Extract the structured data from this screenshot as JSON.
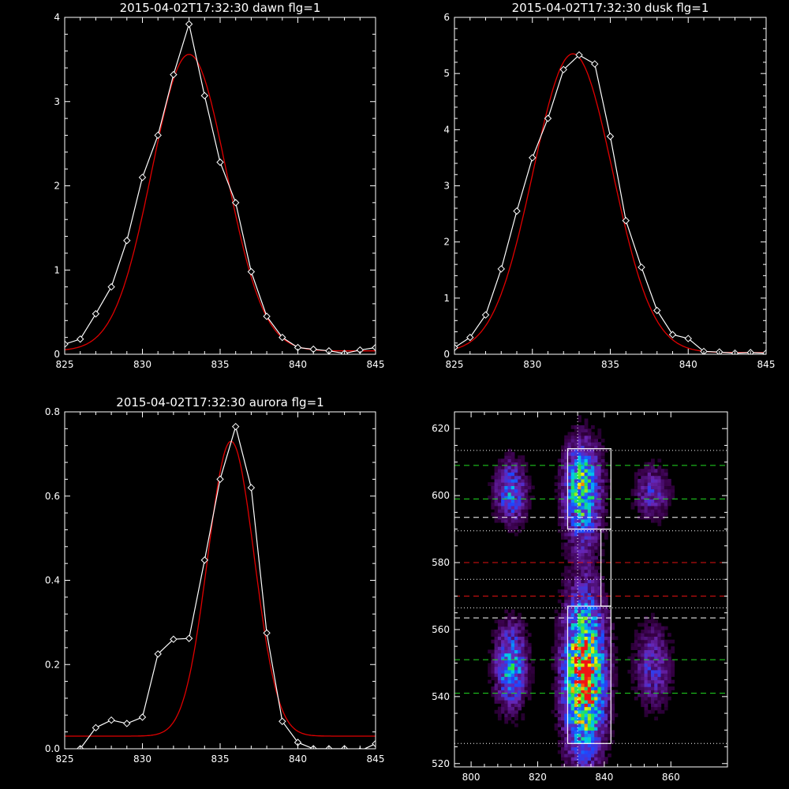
{
  "colors": {
    "background": "#000000",
    "axes": "#ffffff",
    "data": "#ffffff",
    "fit": "#e00000",
    "guide_green": "#22dd22",
    "guide_white": "#ffffff",
    "guide_red": "#e01010"
  },
  "chart_data": [
    {
      "id": "dawn",
      "type": "line",
      "title": "2015-04-02T17:32:30 dawn flg=1",
      "xlabel": "",
      "ylabel": "",
      "xlim": [
        825,
        845
      ],
      "ylim": [
        0,
        4
      ],
      "xticks": [
        "825",
        "830",
        "835",
        "840",
        "845"
      ],
      "yticks": [
        "0",
        "1",
        "2",
        "3",
        "4"
      ],
      "series": [
        {
          "role": "data",
          "marker": "diamond",
          "x": [
            825,
            826,
            827,
            828,
            829,
            830,
            831,
            832,
            833,
            834,
            835,
            836,
            837,
            838,
            839,
            840,
            841,
            842,
            843,
            844,
            845
          ],
          "y": [
            0.12,
            0.18,
            0.48,
            0.8,
            1.35,
            2.1,
            2.6,
            3.32,
            3.92,
            3.07,
            2.28,
            1.8,
            0.98,
            0.45,
            0.2,
            0.08,
            0.06,
            0.04,
            0.01,
            0.05,
            0.08
          ]
        },
        {
          "role": "fit",
          "model": "gaussian",
          "amplitude": 3.52,
          "center": 833.0,
          "sigma": 2.4,
          "offset": 0.04
        }
      ]
    },
    {
      "id": "dusk",
      "type": "line",
      "title": "2015-04-02T17:32:30 dusk flg=1",
      "xlabel": "",
      "ylabel": "",
      "xlim": [
        825,
        845
      ],
      "ylim": [
        0,
        6
      ],
      "xticks": [
        "825",
        "830",
        "835",
        "840",
        "845"
      ],
      "yticks": [
        "0",
        "1",
        "2",
        "3",
        "4",
        "5",
        "6"
      ],
      "series": [
        {
          "role": "data",
          "marker": "diamond",
          "x": [
            825,
            826,
            827,
            828,
            829,
            830,
            831,
            832,
            833,
            834,
            835,
            836,
            837,
            838,
            839,
            840,
            841,
            842,
            843,
            844,
            845
          ],
          "y": [
            0.12,
            0.3,
            0.7,
            1.52,
            2.55,
            3.5,
            4.2,
            5.07,
            5.33,
            5.17,
            3.88,
            2.38,
            1.55,
            0.78,
            0.35,
            0.28,
            0.05,
            0.04,
            0.02,
            0.03,
            0.02
          ]
        },
        {
          "role": "fit",
          "model": "gaussian",
          "amplitude": 5.32,
          "center": 832.6,
          "sigma": 2.55,
          "offset": 0.03
        }
      ]
    },
    {
      "id": "aurora",
      "type": "line",
      "title": "2015-04-02T17:32:30 aurora flg=1",
      "xlabel": "",
      "ylabel": "",
      "xlim": [
        825,
        845
      ],
      "ylim": [
        0,
        0.8
      ],
      "xticks": [
        "825",
        "830",
        "835",
        "840",
        "845"
      ],
      "yticks": [
        "0.0",
        "0.2",
        "0.4",
        "0.6",
        "0.8"
      ],
      "series": [
        {
          "role": "data",
          "marker": "diamond",
          "x": [
            825,
            826,
            827,
            828,
            829,
            830,
            831,
            832,
            833,
            834,
            835,
            836,
            837,
            838,
            839,
            840,
            841,
            842,
            843,
            844,
            845
          ],
          "y": [
            -0.04,
            0.0,
            0.05,
            0.068,
            0.06,
            0.075,
            0.225,
            0.26,
            0.262,
            0.448,
            0.64,
            0.765,
            0.62,
            0.275,
            0.065,
            0.015,
            0.0,
            0.0,
            0.0,
            -0.005,
            0.012
          ]
        },
        {
          "role": "fit",
          "model": "gaussian",
          "amplitude": 0.7,
          "center": 835.7,
          "sigma": 1.5,
          "offset": 0.03
        }
      ]
    },
    {
      "id": "image",
      "type": "heatmap",
      "title": "",
      "xlabel": "",
      "ylabel": "",
      "xlim": [
        795,
        877
      ],
      "ylim": [
        519,
        625
      ],
      "xticks": [
        "800",
        "820",
        "840",
        "860"
      ],
      "yticks": [
        "520",
        "540",
        "560",
        "580",
        "600",
        "620"
      ],
      "bright_regions": [
        {
          "x": [
            808,
            815
          ],
          "y": [
            594,
            607
          ],
          "peak": 0.45
        },
        {
          "x": [
            808,
            815
          ],
          "y": [
            540,
            557
          ],
          "peak": 0.55
        },
        {
          "x": [
            829,
            837
          ],
          "y": [
            591,
            611
          ],
          "peak": 0.7
        },
        {
          "x": [
            829,
            838
          ],
          "y": [
            530,
            562
          ],
          "peak": 1.0
        },
        {
          "x": [
            850,
            858
          ],
          "y": [
            595,
            606
          ],
          "peak": 0.3
        },
        {
          "x": [
            850,
            858
          ],
          "y": [
            540,
            557
          ],
          "peak": 0.32
        }
      ],
      "boxes": [
        {
          "x": [
            829,
            842
          ],
          "y": [
            590,
            614
          ]
        },
        {
          "x": [
            839,
            842
          ],
          "y": [
            567,
            590
          ]
        },
        {
          "x": [
            829,
            842
          ],
          "y": [
            526,
            567
          ]
        }
      ],
      "vline_x": 832,
      "hlines": [
        {
          "y": 613.5,
          "style": "dotted",
          "color": "white"
        },
        {
          "y": 609,
          "style": "dashed",
          "color": "green"
        },
        {
          "y": 599,
          "style": "dashed",
          "color": "green"
        },
        {
          "y": 593.5,
          "style": "dashed",
          "color": "white"
        },
        {
          "y": 589.5,
          "style": "dotted",
          "color": "white"
        },
        {
          "y": 580,
          "style": "dashed",
          "color": "red"
        },
        {
          "y": 575,
          "style": "dotted",
          "color": "white"
        },
        {
          "y": 570,
          "style": "dashed",
          "color": "red"
        },
        {
          "y": 566.5,
          "style": "dotted",
          "color": "white"
        },
        {
          "y": 563.5,
          "style": "dashed",
          "color": "white"
        },
        {
          "y": 551,
          "style": "dashed",
          "color": "green"
        },
        {
          "y": 541,
          "style": "dashed",
          "color": "green"
        },
        {
          "y": 526,
          "style": "dotted",
          "color": "white"
        }
      ]
    }
  ]
}
